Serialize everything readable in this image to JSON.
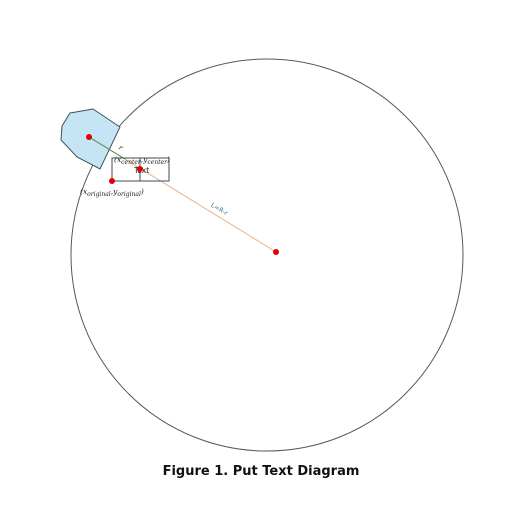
{
  "diagram": {
    "center_label": {
      "x": "x",
      "x_sub": "center",
      "sep": ",",
      "y": "y",
      "y_sub": "center",
      "open": "(",
      "close": ")"
    },
    "origin_label": {
      "x": "x",
      "x_sub": "original",
      "sep": ",",
      "y": "y",
      "y_sub": "original",
      "open": "(",
      "close": ")"
    },
    "text_box_label": "Text",
    "short_segment_label": "r",
    "long_segment_label": "L=R-r"
  },
  "caption": "Figure 1. Put Text Diagram",
  "colors": {
    "circle_stroke": "#4a5e5e",
    "polygon_fill": "#c5e4f4",
    "polygon_stroke": "#3f4f58",
    "point": "#e00000",
    "long_line": "#e8b38f",
    "short_line": "#4a8a4a",
    "rect_stroke": "#3a4e5a"
  }
}
